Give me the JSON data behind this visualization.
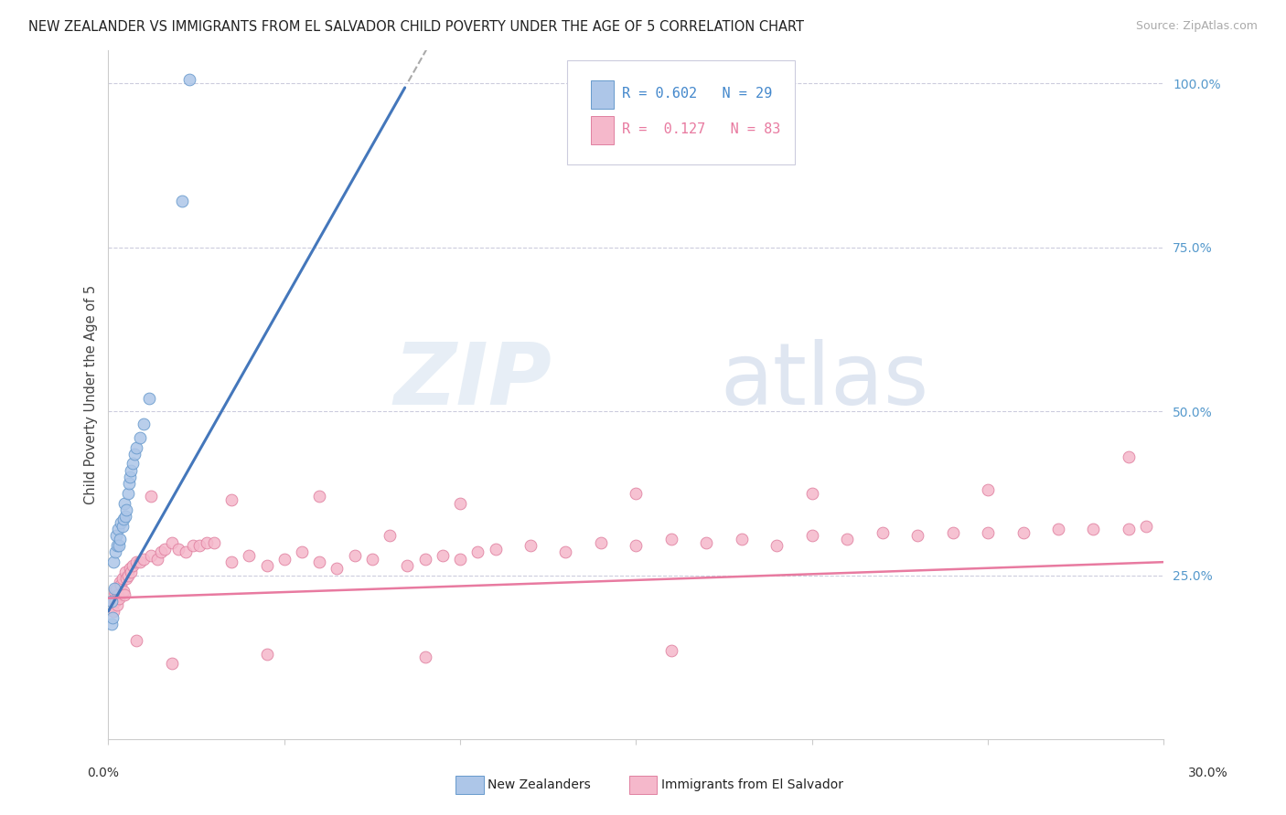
{
  "title": "NEW ZEALANDER VS IMMIGRANTS FROM EL SALVADOR CHILD POVERTY UNDER THE AGE OF 5 CORRELATION CHART",
  "source": "Source: ZipAtlas.com",
  "ylabel": "Child Poverty Under the Age of 5",
  "legend1_R": "0.602",
  "legend1_N": "29",
  "legend2_R": "0.127",
  "legend2_N": "83",
  "nz_color": "#adc6e8",
  "nz_edge_color": "#6699cc",
  "nz_line_color": "#4477bb",
  "es_color": "#f5b8cb",
  "es_edge_color": "#e080a0",
  "es_line_color": "#e87aa0",
  "watermark_zip": "ZIP",
  "watermark_atlas": "atlas",
  "bg_color": "#ffffff",
  "grid_color": "#ccccdd",
  "xmin": 0.0,
  "xmax": 0.3,
  "ymin": 0.0,
  "ymax": 1.05,
  "yticks": [
    0.25,
    0.5,
    0.75,
    1.0
  ],
  "ytick_labels_right": [
    "25.0%",
    "50.0%",
    "75.0%",
    "100.0%"
  ],
  "nz_x": [
    0.0008,
    0.001,
    0.0012,
    0.0015,
    0.0018,
    0.002,
    0.0022,
    0.0025,
    0.0028,
    0.003,
    0.0033,
    0.0035,
    0.004,
    0.0042,
    0.0045,
    0.0048,
    0.005,
    0.0055,
    0.0058,
    0.006,
    0.0065,
    0.007,
    0.0075,
    0.008,
    0.009,
    0.01,
    0.0115,
    0.021,
    0.023
  ],
  "nz_y": [
    0.175,
    0.21,
    0.185,
    0.27,
    0.23,
    0.285,
    0.31,
    0.295,
    0.32,
    0.295,
    0.305,
    0.33,
    0.325,
    0.335,
    0.36,
    0.34,
    0.35,
    0.375,
    0.39,
    0.4,
    0.41,
    0.42,
    0.435,
    0.445,
    0.46,
    0.48,
    0.52,
    0.82,
    1.005
  ],
  "es_x": [
    0.0008,
    0.001,
    0.0012,
    0.0015,
    0.0018,
    0.002,
    0.0022,
    0.0025,
    0.0028,
    0.003,
    0.0033,
    0.0035,
    0.004,
    0.0042,
    0.0045,
    0.0048,
    0.005,
    0.0055,
    0.006,
    0.0065,
    0.007,
    0.008,
    0.009,
    0.01,
    0.012,
    0.014,
    0.015,
    0.016,
    0.018,
    0.02,
    0.022,
    0.024,
    0.026,
    0.028,
    0.03,
    0.035,
    0.04,
    0.045,
    0.05,
    0.055,
    0.06,
    0.065,
    0.07,
    0.075,
    0.08,
    0.085,
    0.09,
    0.095,
    0.1,
    0.105,
    0.11,
    0.12,
    0.13,
    0.14,
    0.15,
    0.16,
    0.17,
    0.18,
    0.19,
    0.2,
    0.21,
    0.22,
    0.23,
    0.24,
    0.25,
    0.26,
    0.27,
    0.28,
    0.29,
    0.295,
    0.012,
    0.035,
    0.06,
    0.1,
    0.15,
    0.2,
    0.25,
    0.29,
    0.008,
    0.018,
    0.045,
    0.09,
    0.16
  ],
  "es_y": [
    0.2,
    0.215,
    0.205,
    0.195,
    0.225,
    0.21,
    0.23,
    0.205,
    0.22,
    0.215,
    0.24,
    0.235,
    0.245,
    0.225,
    0.22,
    0.255,
    0.245,
    0.25,
    0.26,
    0.255,
    0.265,
    0.27,
    0.27,
    0.275,
    0.28,
    0.275,
    0.285,
    0.29,
    0.3,
    0.29,
    0.285,
    0.295,
    0.295,
    0.3,
    0.3,
    0.27,
    0.28,
    0.265,
    0.275,
    0.285,
    0.27,
    0.26,
    0.28,
    0.275,
    0.31,
    0.265,
    0.275,
    0.28,
    0.275,
    0.285,
    0.29,
    0.295,
    0.285,
    0.3,
    0.295,
    0.305,
    0.3,
    0.305,
    0.295,
    0.31,
    0.305,
    0.315,
    0.31,
    0.315,
    0.315,
    0.315,
    0.32,
    0.32,
    0.32,
    0.325,
    0.37,
    0.365,
    0.37,
    0.36,
    0.375,
    0.375,
    0.38,
    0.43,
    0.15,
    0.115,
    0.13,
    0.125,
    0.135
  ]
}
